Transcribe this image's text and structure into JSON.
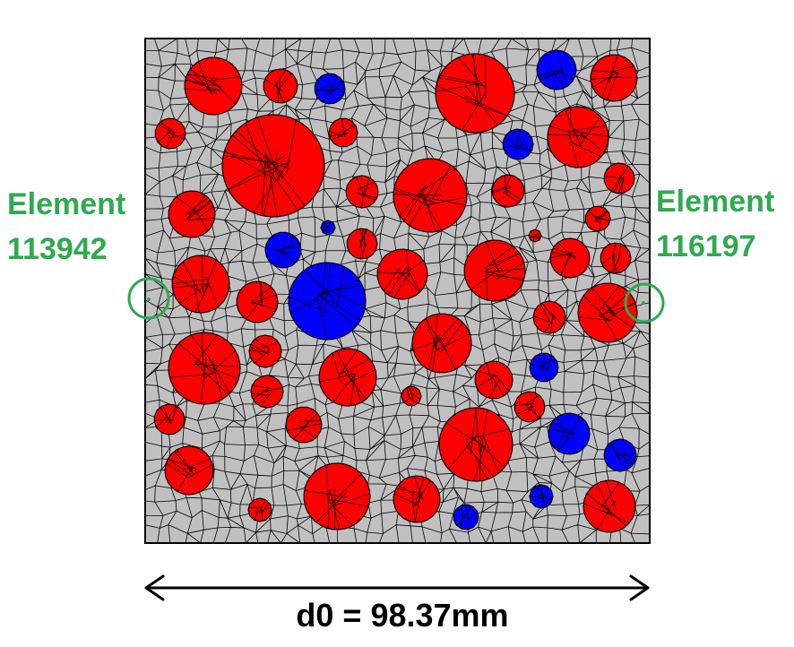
{
  "labels": {
    "left_element": {
      "line1": "Element",
      "line2": "113942"
    },
    "right_element": {
      "line1": "Element",
      "line2": "116197"
    },
    "dimension": "d0 = 98.37mm"
  },
  "colors": {
    "matrix": "#c0c0c0",
    "mesh_lines": "#000000",
    "aggregate_red": "#ff0000",
    "aggregate_blue": "#0000ff",
    "highlight_circle": "#2eaa4f",
    "label_text": "#2eaa4f",
    "dimension_text": "#000000"
  },
  "legend_note": ""
}
